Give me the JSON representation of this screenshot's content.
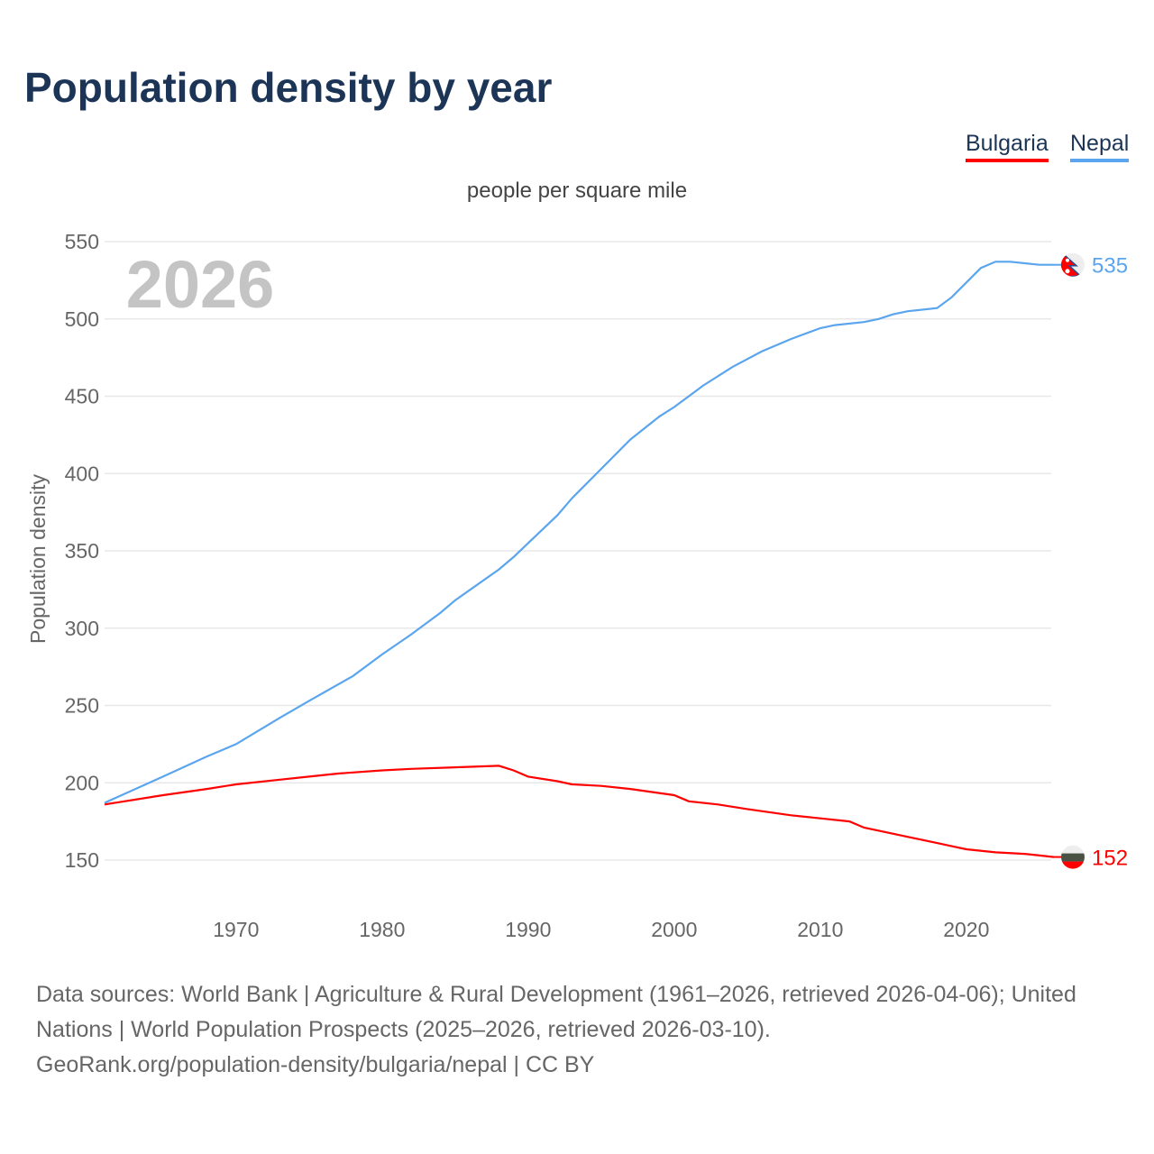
{
  "title": "Population density by year",
  "unit_label": "people per square mile",
  "footer": {
    "sources": "Data sources: World Bank | Agriculture & Rural Development (1961–2026, retrieved 2026-04-06); United Nations | World Population Prospects (2025–2026, retrieved 2026-03-10).",
    "url": "GeoRank.org/population-density/bulgaria/nepal | CC BY"
  },
  "chart_data": {
    "type": "line",
    "title": "Population density by year",
    "ylabel": "Population density",
    "xlabel": "",
    "year_watermark": "2026",
    "xlim": [
      1961,
      2026
    ],
    "ylim": [
      130,
      560
    ],
    "xticks": [
      "1970",
      "1980",
      "1990",
      "2000",
      "2010",
      "2020"
    ],
    "yticks": [
      "150",
      "200",
      "250",
      "300",
      "350",
      "400",
      "450",
      "500",
      "550"
    ],
    "grid": true,
    "legend": "top-right",
    "series": [
      {
        "name": "Bulgaria",
        "color": "#ff0000",
        "end_label": "152",
        "flag": "bulgaria-flag",
        "points": [
          [
            1961,
            186
          ],
          [
            1965,
            192
          ],
          [
            1968,
            196
          ],
          [
            1970,
            199
          ],
          [
            1973,
            202
          ],
          [
            1975,
            204
          ],
          [
            1977,
            206
          ],
          [
            1980,
            208
          ],
          [
            1982,
            209
          ],
          [
            1985,
            210
          ],
          [
            1988,
            211
          ],
          [
            1989,
            208
          ],
          [
            1990,
            204
          ],
          [
            1992,
            201
          ],
          [
            1993,
            199
          ],
          [
            1995,
            198
          ],
          [
            1997,
            196
          ],
          [
            2000,
            192
          ],
          [
            2001,
            188
          ],
          [
            2003,
            186
          ],
          [
            2005,
            183
          ],
          [
            2008,
            179
          ],
          [
            2010,
            177
          ],
          [
            2012,
            175
          ],
          [
            2013,
            171
          ],
          [
            2015,
            167
          ],
          [
            2018,
            161
          ],
          [
            2019,
            159
          ],
          [
            2020,
            157
          ],
          [
            2022,
            155
          ],
          [
            2024,
            154
          ],
          [
            2026,
            152
          ]
        ]
      },
      {
        "name": "Nepal",
        "color": "#5aa5ee",
        "end_label": "535",
        "flag": "nepal-flag",
        "points": [
          [
            1961,
            187
          ],
          [
            1965,
            204
          ],
          [
            1968,
            217
          ],
          [
            1970,
            225
          ],
          [
            1973,
            242
          ],
          [
            1975,
            253
          ],
          [
            1978,
            269
          ],
          [
            1980,
            283
          ],
          [
            1982,
            296
          ],
          [
            1984,
            310
          ],
          [
            1985,
            318
          ],
          [
            1988,
            338
          ],
          [
            1989,
            346
          ],
          [
            1990,
            355
          ],
          [
            1992,
            373
          ],
          [
            1993,
            384
          ],
          [
            1995,
            403
          ],
          [
            1997,
            422
          ],
          [
            1999,
            437
          ],
          [
            2000,
            443
          ],
          [
            2002,
            457
          ],
          [
            2004,
            469
          ],
          [
            2006,
            479
          ],
          [
            2008,
            487
          ],
          [
            2010,
            494
          ],
          [
            2011,
            496
          ],
          [
            2013,
            498
          ],
          [
            2014,
            500
          ],
          [
            2015,
            503
          ],
          [
            2016,
            505
          ],
          [
            2018,
            507
          ],
          [
            2019,
            514
          ],
          [
            2021,
            533
          ],
          [
            2022,
            537
          ],
          [
            2023,
            537
          ],
          [
            2025,
            535
          ],
          [
            2026,
            535
          ]
        ]
      }
    ]
  }
}
